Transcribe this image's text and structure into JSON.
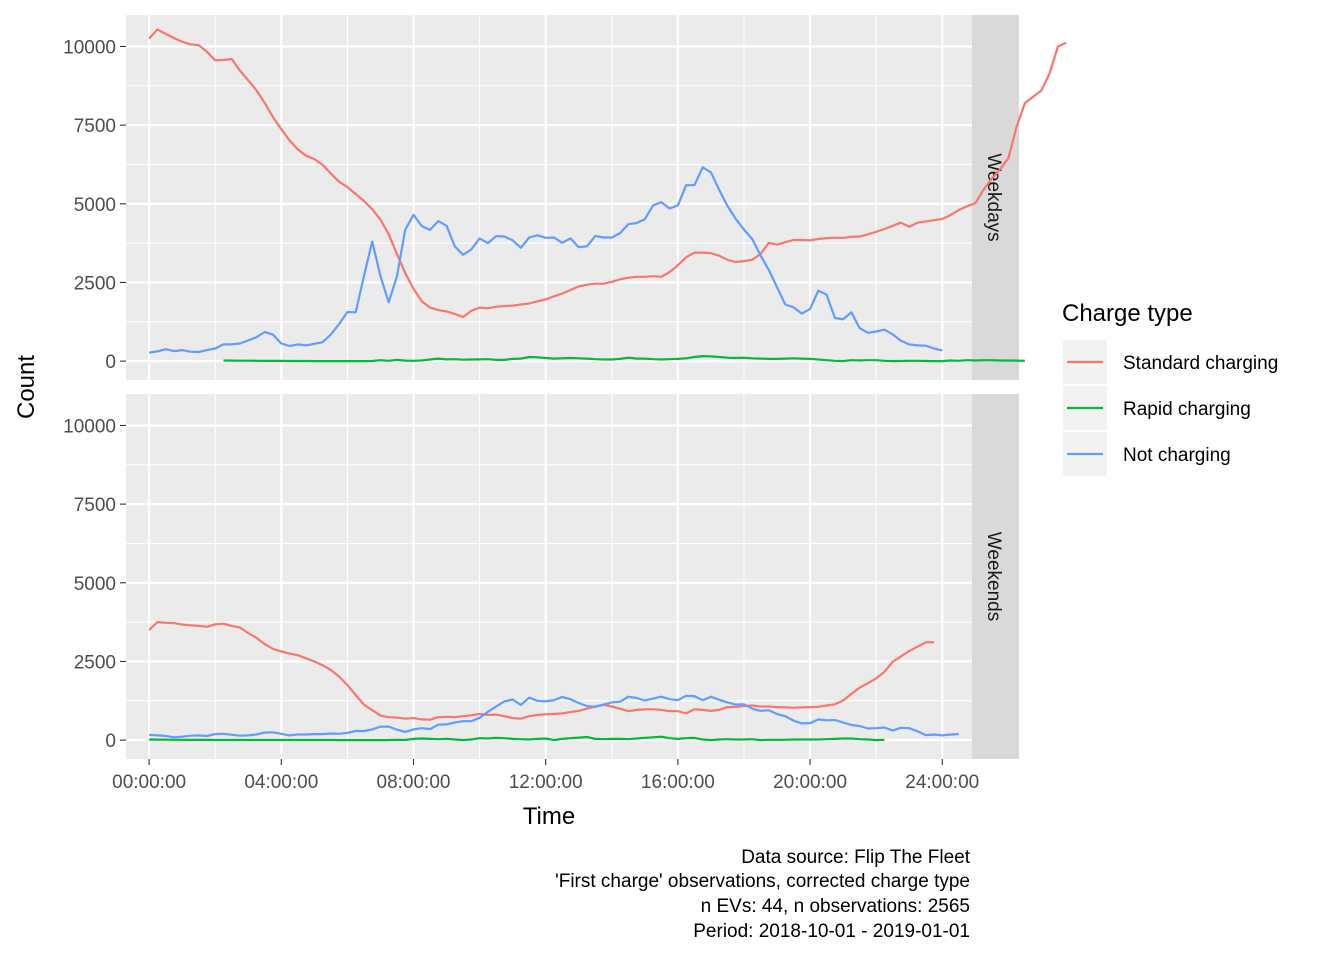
{
  "chart_data": {
    "type": "line",
    "xlabel": "Time",
    "ylabel": "Count",
    "x_tick_labels": [
      "00:00:00",
      "04:00:00",
      "08:00:00",
      "12:00:00",
      "16:00:00",
      "20:00:00",
      "24:00:00"
    ],
    "y_tick_labels": [
      "0",
      "2500",
      "5000",
      "7500",
      "10000"
    ],
    "ylim": [
      -600,
      11000
    ],
    "xlim_hours": [
      -0.7,
      24.9
    ],
    "legend": {
      "title": "Charge type",
      "position": "right",
      "entries": [
        {
          "label": "Standard charging",
          "color": "#F8766D"
        },
        {
          "label": "Rapid charging",
          "color": "#00BA38"
        },
        {
          "label": "Not charging",
          "color": "#619CFF"
        }
      ]
    },
    "caption": [
      "Data source: Flip The Fleet",
      "'First charge' observations, corrected charge type",
      "n EVs: 44, n observations: 2565",
      "Period: 2018-10-01 - 2019-01-01"
    ],
    "panels": [
      {
        "strip": "Weekdays",
        "series": [
          {
            "name": "Standard charging",
            "color": "#F8766D",
            "x_start_hours": 0,
            "x_step_hours": 0.25,
            "values": [
              10250,
              10540,
              10400,
              10270,
              10150,
              10070,
              10040,
              9830,
              9560,
              9570,
              9600,
              9230,
              8920,
              8600,
              8200,
              7750,
              7370,
              7010,
              6730,
              6530,
              6420,
              6240,
              5960,
              5700,
              5530,
              5310,
              5090,
              4830,
              4490,
              4030,
              3400,
              2800,
              2300,
              1900,
              1700,
              1620,
              1580,
              1500,
              1400,
              1600,
              1700,
              1680,
              1730,
              1750,
              1760,
              1800,
              1830,
              1900,
              1960,
              2060,
              2150,
              2260,
              2370,
              2430,
              2460,
              2460,
              2520,
              2600,
              2650,
              2680,
              2680,
              2700,
              2680,
              2830,
              3050,
              3300,
              3450,
              3450,
              3430,
              3350,
              3220,
              3150,
              3180,
              3220,
              3400,
              3760,
              3700,
              3780,
              3850,
              3850,
              3840,
              3880,
              3910,
              3920,
              3920,
              3950,
              3960,
              4030,
              4110,
              4200,
              4300,
              4400,
              4270,
              4400,
              4440,
              4480,
              4520,
              4640,
              4800,
              4920,
              5020,
              5450,
              5800,
              6100,
              6450,
              7450,
              8200,
              8400,
              8600,
              9150,
              10000,
              10120
            ]
          },
          {
            "name": "Rapid charging",
            "color": "#00BA38",
            "x_start_hours": 2.25,
            "x_step_hours": 0.25,
            "values": [
              20,
              15,
              12,
              12,
              10,
              8,
              8,
              6,
              5,
              5,
              3,
              2,
              2,
              1,
              0,
              0,
              0,
              0,
              5,
              30,
              10,
              40,
              15,
              10,
              20,
              50,
              80,
              55,
              60,
              45,
              50,
              55,
              60,
              40,
              40,
              70,
              80,
              130,
              120,
              100,
              80,
              90,
              100,
              90,
              80,
              60,
              50,
              50,
              70,
              110,
              80,
              80,
              60,
              50,
              60,
              70,
              90,
              130,
              160,
              150,
              130,
              110,
              100,
              110,
              90,
              80,
              70,
              70,
              80,
              90,
              80,
              70,
              50,
              30,
              10,
              0,
              30,
              20,
              30,
              30,
              10,
              0,
              5,
              10,
              10,
              5,
              0,
              0,
              20,
              10,
              30,
              20,
              30,
              30,
              20,
              20,
              15,
              10
            ]
          },
          {
            "name": "Not charging",
            "color": "#619CFF",
            "x_start_hours": 0,
            "x_step_hours": 0.25,
            "values": [
              270,
              310,
              380,
              320,
              350,
              300,
              290,
              350,
              400,
              530,
              530,
              560,
              660,
              760,
              930,
              840,
              560,
              480,
              530,
              500,
              550,
              600,
              850,
              1180,
              1560,
              1550,
              2700,
              3800,
              2700,
              1870,
              2700,
              4170,
              4650,
              4290,
              4170,
              4450,
              4300,
              3650,
              3380,
              3550,
              3900,
              3750,
              3970,
              3960,
              3840,
              3600,
              3930,
              4000,
              3920,
              3930,
              3760,
              3900,
              3620,
              3650,
              3980,
              3930,
              3930,
              4070,
              4350,
              4390,
              4510,
              4950,
              5050,
              4850,
              4950,
              5590,
              5590,
              6160,
              6000,
              5440,
              4930,
              4520,
              4180,
              3880,
              3360,
              2900,
              2350,
              1800,
              1710,
              1510,
              1660,
              2240,
              2110,
              1370,
              1330,
              1550,
              1050,
              900,
              940,
              1000,
              850,
              650,
              530,
              500,
              490,
              400,
              340
            ]
          }
        ]
      },
      {
        "strip": "Weekends",
        "series": [
          {
            "name": "Standard charging",
            "color": "#F8766D",
            "x_start_hours": 0,
            "x_step_hours": 0.25,
            "values": [
              3500,
              3750,
              3730,
              3720,
              3670,
              3650,
              3630,
              3600,
              3680,
              3700,
              3630,
              3580,
              3400,
              3250,
              3050,
              2900,
              2820,
              2750,
              2700,
              2600,
              2500,
              2380,
              2230,
              2020,
              1750,
              1430,
              1130,
              950,
              780,
              730,
              720,
              680,
              700,
              660,
              650,
              730,
              740,
              730,
              760,
              790,
              830,
              800,
              810,
              760,
              700,
              680,
              760,
              800,
              820,
              830,
              850,
              890,
              930,
              1000,
              1070,
              1120,
              1070,
              1000,
              920,
              960,
              980,
              980,
              960,
              920,
              920,
              850,
              980,
              960,
              930,
              960,
              1050,
              1060,
              1080,
              1100,
              1070,
              1070,
              1050,
              1040,
              1030,
              1040,
              1050,
              1060,
              1100,
              1140,
              1260,
              1470,
              1670,
              1810,
              1960,
              2170,
              2490,
              2660,
              2830,
              2970,
              3110,
              3110
            ]
          },
          {
            "name": "Rapid charging",
            "color": "#00BA38",
            "x_start_hours": 0,
            "x_step_hours": 0.25,
            "values": [
              20,
              15,
              12,
              10,
              10,
              8,
              8,
              6,
              5,
              5,
              5,
              4,
              4,
              4,
              4,
              4,
              4,
              4,
              4,
              4,
              3,
              3,
              3,
              2,
              2,
              2,
              1,
              0,
              0,
              0,
              10,
              5,
              40,
              50,
              40,
              30,
              40,
              20,
              0,
              20,
              60,
              50,
              70,
              60,
              40,
              30,
              20,
              40,
              50,
              0,
              40,
              60,
              80,
              100,
              40,
              30,
              40,
              40,
              30,
              50,
              70,
              90,
              110,
              60,
              40,
              60,
              70,
              20,
              0,
              20,
              30,
              20,
              20,
              30,
              0,
              10,
              10,
              10,
              20,
              20,
              20,
              20,
              30,
              40,
              50,
              50,
              30,
              20,
              0,
              10
            ]
          },
          {
            "name": "Not charging",
            "color": "#619CFF",
            "x_start_hours": 0,
            "x_step_hours": 0.25,
            "values": [
              170,
              150,
              130,
              90,
              110,
              140,
              150,
              130,
              190,
              200,
              170,
              140,
              150,
              180,
              240,
              250,
              200,
              150,
              180,
              180,
              190,
              190,
              210,
              200,
              230,
              290,
              290,
              340,
              430,
              430,
              330,
              260,
              340,
              380,
              350,
              490,
              500,
              560,
              600,
              600,
              710,
              900,
              1070,
              1230,
              1290,
              1120,
              1350,
              1250,
              1230,
              1270,
              1370,
              1300,
              1180,
              1080,
              1060,
              1130,
              1200,
              1220,
              1380,
              1340,
              1260,
              1320,
              1380,
              1300,
              1270,
              1410,
              1400,
              1270,
              1380,
              1280,
              1200,
              1130,
              1140,
              1000,
              930,
              950,
              830,
              760,
              620,
              530,
              540,
              660,
              630,
              640,
              560,
              480,
              450,
              370,
              380,
              400,
              310,
              390,
              380,
              280,
              160,
              180,
              150,
              180,
              190
            ]
          }
        ]
      }
    ]
  }
}
